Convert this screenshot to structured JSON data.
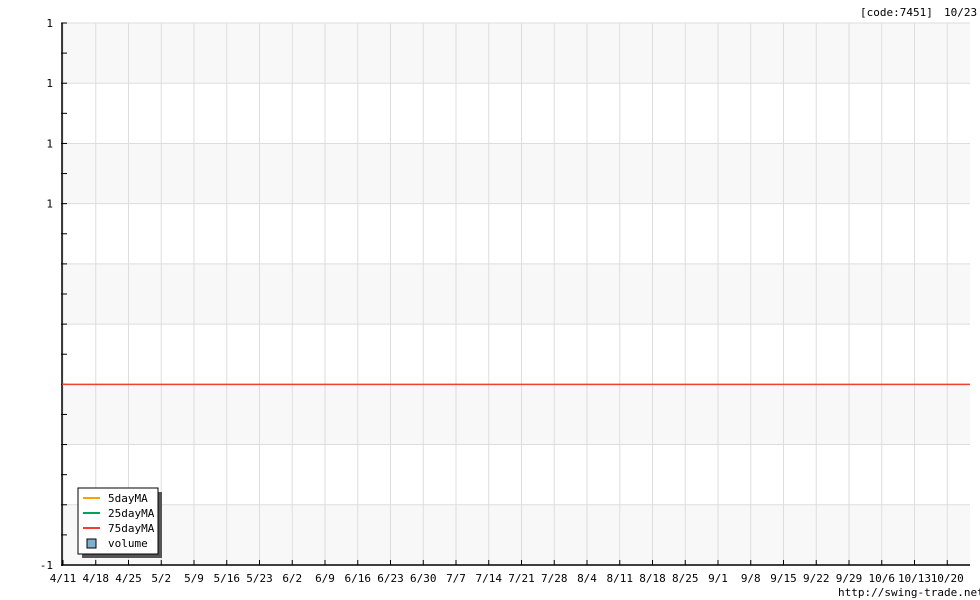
{
  "header": {
    "code_label": "[code:7451]",
    "date_label": "10/23"
  },
  "footer": {
    "site": "http://swing-trade.net"
  },
  "chart_data": {
    "type": "line",
    "title": "",
    "xlabel": "",
    "ylabel": "",
    "x_tick_labels": [
      "4/11",
      "4/18",
      "4/25",
      "5/2",
      "5/9",
      "5/16",
      "5/23",
      "6/2",
      "6/9",
      "6/16",
      "6/23",
      "6/30",
      "7/7",
      "7/14",
      "7/21",
      "7/28",
      "8/4",
      "8/11",
      "8/18",
      "8/25",
      "9/1",
      "9/8",
      "9/15",
      "9/22",
      "9/29",
      "10/6",
      "10/13",
      "10/20"
    ],
    "y_tick_labels": [
      "1",
      "1",
      "1",
      "1",
      "",
      "",
      "",
      "",
      "",
      "-1"
    ],
    "grid": true,
    "legend_position": "bottom-left",
    "series": [
      {
        "name": "5dayMA",
        "color": "#f5a300",
        "values": []
      },
      {
        "name": "25dayMA",
        "color": "#00a060",
        "values": []
      },
      {
        "name": "75dayMA",
        "color": "#f04030",
        "values": [
          0
        ]
      },
      {
        "name": "volume",
        "color": "#7fb0d0",
        "kind": "bar",
        "values": []
      }
    ]
  }
}
